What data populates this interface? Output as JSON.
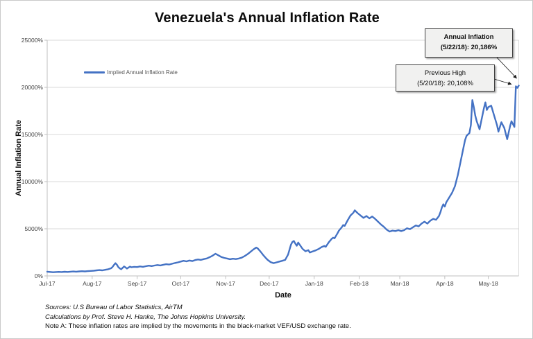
{
  "title": "Venezuela's Annual Inflation Rate",
  "legend": {
    "label": "Implied Annual Inflation Rate"
  },
  "axes": {
    "y_title": "Annual Inflation Rate",
    "x_title": "Date"
  },
  "annotations": {
    "annual_inflation": {
      "line1": "Annual Inflation",
      "line2": "(5/22/18): 20,186%"
    },
    "previous_high": {
      "line1": "Previous High",
      "line2": "(5/20/18): 20,108%"
    }
  },
  "footer": {
    "sources": "Sources: U.S Bureau of Labor Statistics, AirTM",
    "calculations": "Calculations by Prof. Steve H. Hanke, The Johns Hopkins University.",
    "note": "Note A: These inflation rates are implied by the movements in the black-market VEF/USD exchange rate."
  },
  "chart_data": {
    "type": "line",
    "title": "Venezuela's Annual Inflation Rate",
    "xlabel": "Date",
    "ylabel": "Annual Inflation Rate",
    "ylim": [
      0,
      25000
    ],
    "grid": "horizontal",
    "legend_position": "inside-top-left",
    "line_color": "#4472C4",
    "grid_color": "#d9d9d9",
    "axis_color": "#bfbfbf",
    "y_ticks": [
      {
        "label": "0%",
        "value": 0
      },
      {
        "label": "5000%",
        "value": 5000
      },
      {
        "label": "10000%",
        "value": 10000
      },
      {
        "label": "15000%",
        "value": 15000
      },
      {
        "label": "20000%",
        "value": 20000
      },
      {
        "label": "25000%",
        "value": 25000
      }
    ],
    "x_ticks": [
      {
        "label": "Jul-17",
        "day": 0
      },
      {
        "label": "Aug-17",
        "day": 31
      },
      {
        "label": "Sep-17",
        "day": 62
      },
      {
        "label": "Oct-17",
        "day": 92
      },
      {
        "label": "Nov-17",
        "day": 123
      },
      {
        "label": "Dec-17",
        "day": 153
      },
      {
        "label": "Jan-18",
        "day": 184
      },
      {
        "label": "Feb-18",
        "day": 215
      },
      {
        "label": "Mar-18",
        "day": 243
      },
      {
        "label": "Apr-18",
        "day": 274
      },
      {
        "label": "May-18",
        "day": 304
      }
    ],
    "x_range_days": [
      0,
      325
    ],
    "x_day_zero": "Jul 1, 2017",
    "key_points": [
      {
        "label": "Previous High",
        "date": "5/20/18",
        "value_pct": 20108
      },
      {
        "label": "Annual Inflation",
        "date": "5/22/18",
        "value_pct": 20186
      }
    ],
    "series": [
      {
        "name": "Implied Annual Inflation Rate",
        "points": [
          [
            0,
            450
          ],
          [
            2,
            420
          ],
          [
            4,
            390
          ],
          [
            6,
            410
          ],
          [
            8,
            430
          ],
          [
            10,
            410
          ],
          [
            12,
            440
          ],
          [
            14,
            420
          ],
          [
            16,
            450
          ],
          [
            18,
            470
          ],
          [
            20,
            450
          ],
          [
            22,
            480
          ],
          [
            24,
            500
          ],
          [
            26,
            480
          ],
          [
            28,
            510
          ],
          [
            30,
            530
          ],
          [
            32,
            555
          ],
          [
            34,
            585
          ],
          [
            36,
            620
          ],
          [
            38,
            585
          ],
          [
            40,
            645
          ],
          [
            42,
            705
          ],
          [
            44,
            810
          ],
          [
            45,
            950
          ],
          [
            46,
            1160
          ],
          [
            47,
            1350
          ],
          [
            48,
            1190
          ],
          [
            49,
            950
          ],
          [
            50,
            800
          ],
          [
            51,
            705
          ],
          [
            52,
            855
          ],
          [
            53,
            1000
          ],
          [
            54,
            900
          ],
          [
            55,
            780
          ],
          [
            56,
            880
          ],
          [
            57,
            985
          ],
          [
            58,
            920
          ],
          [
            60,
            960
          ],
          [
            62,
            940
          ],
          [
            64,
            1005
          ],
          [
            66,
            965
          ],
          [
            68,
            1030
          ],
          [
            70,
            1085
          ],
          [
            72,
            1045
          ],
          [
            74,
            1105
          ],
          [
            76,
            1155
          ],
          [
            78,
            1110
          ],
          [
            80,
            1185
          ],
          [
            82,
            1245
          ],
          [
            84,
            1205
          ],
          [
            86,
            1290
          ],
          [
            88,
            1365
          ],
          [
            90,
            1435
          ],
          [
            92,
            1520
          ],
          [
            94,
            1600
          ],
          [
            96,
            1545
          ],
          [
            98,
            1630
          ],
          [
            100,
            1575
          ],
          [
            102,
            1685
          ],
          [
            104,
            1745
          ],
          [
            106,
            1695
          ],
          [
            108,
            1785
          ],
          [
            110,
            1855
          ],
          [
            112,
            1990
          ],
          [
            114,
            2150
          ],
          [
            116,
            2350
          ],
          [
            118,
            2185
          ],
          [
            120,
            2005
          ],
          [
            122,
            1915
          ],
          [
            124,
            1845
          ],
          [
            126,
            1775
          ],
          [
            128,
            1825
          ],
          [
            130,
            1790
          ],
          [
            132,
            1845
          ],
          [
            134,
            1935
          ],
          [
            136,
            2095
          ],
          [
            138,
            2295
          ],
          [
            140,
            2545
          ],
          [
            142,
            2795
          ],
          [
            144,
            3010
          ],
          [
            145,
            2930
          ],
          [
            147,
            2590
          ],
          [
            149,
            2190
          ],
          [
            151,
            1845
          ],
          [
            152,
            1690
          ],
          [
            154,
            1465
          ],
          [
            156,
            1355
          ],
          [
            158,
            1435
          ],
          [
            160,
            1525
          ],
          [
            162,
            1605
          ],
          [
            164,
            1695
          ],
          [
            166,
            2265
          ],
          [
            167,
            2805
          ],
          [
            168,
            3305
          ],
          [
            169,
            3605
          ],
          [
            170,
            3705
          ],
          [
            171,
            3435
          ],
          [
            172,
            3195
          ],
          [
            173,
            3535
          ],
          [
            174,
            3315
          ],
          [
            176,
            2865
          ],
          [
            178,
            2615
          ],
          [
            180,
            2725
          ],
          [
            181,
            2485
          ],
          [
            183,
            2605
          ],
          [
            185,
            2705
          ],
          [
            187,
            2855
          ],
          [
            189,
            3055
          ],
          [
            191,
            3185
          ],
          [
            192,
            3085
          ],
          [
            194,
            3555
          ],
          [
            196,
            3925
          ],
          [
            197,
            4055
          ],
          [
            198,
            3985
          ],
          [
            200,
            4505
          ],
          [
            201,
            4785
          ],
          [
            203,
            5155
          ],
          [
            204,
            5395
          ],
          [
            205,
            5305
          ],
          [
            207,
            5885
          ],
          [
            209,
            6405
          ],
          [
            211,
            6705
          ],
          [
            212,
            6955
          ],
          [
            214,
            6655
          ],
          [
            216,
            6405
          ],
          [
            218,
            6155
          ],
          [
            220,
            6355
          ],
          [
            222,
            6105
          ],
          [
            224,
            6305
          ],
          [
            226,
            6055
          ],
          [
            228,
            5755
          ],
          [
            230,
            5455
          ],
          [
            232,
            5205
          ],
          [
            234,
            4905
          ],
          [
            236,
            4705
          ],
          [
            238,
            4805
          ],
          [
            240,
            4755
          ],
          [
            242,
            4855
          ],
          [
            244,
            4755
          ],
          [
            246,
            4855
          ],
          [
            248,
            5055
          ],
          [
            250,
            4955
          ],
          [
            252,
            5155
          ],
          [
            254,
            5355
          ],
          [
            256,
            5255
          ],
          [
            258,
            5555
          ],
          [
            260,
            5755
          ],
          [
            262,
            5555
          ],
          [
            264,
            5855
          ],
          [
            266,
            6055
          ],
          [
            268,
            5955
          ],
          [
            270,
            6355
          ],
          [
            271,
            6755
          ],
          [
            272,
            7255
          ],
          [
            273,
            7605
          ],
          [
            274,
            7355
          ],
          [
            275,
            7805
          ],
          [
            277,
            8305
          ],
          [
            279,
            8805
          ],
          [
            281,
            9505
          ],
          [
            283,
            10705
          ],
          [
            285,
            12205
          ],
          [
            287,
            13705
          ],
          [
            288,
            14405
          ],
          [
            289,
            14855
          ],
          [
            290,
            15005
          ],
          [
            291,
            15155
          ],
          [
            292,
            16005
          ],
          [
            293,
            18655
          ],
          [
            294,
            17905
          ],
          [
            295,
            17005
          ],
          [
            296,
            16405
          ],
          [
            298,
            15555
          ],
          [
            300,
            17055
          ],
          [
            301,
            17805
          ],
          [
            302,
            18405
          ],
          [
            303,
            17605
          ],
          [
            304,
            17905
          ],
          [
            306,
            18055
          ],
          [
            308,
            17005
          ],
          [
            310,
            16005
          ],
          [
            311,
            15305
          ],
          [
            313,
            16305
          ],
          [
            315,
            15705
          ],
          [
            317,
            14505
          ],
          [
            319,
            15905
          ],
          [
            320,
            16405
          ],
          [
            322,
            15805
          ],
          [
            323,
            20108
          ],
          [
            324,
            19950
          ],
          [
            325,
            20186
          ]
        ]
      }
    ]
  }
}
